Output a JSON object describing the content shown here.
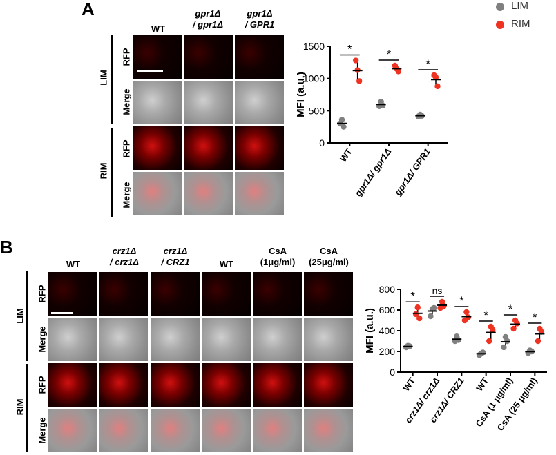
{
  "panels": [
    {
      "letter": "A",
      "columns": [
        {
          "line1": "WT",
          "line2": ""
        },
        {
          "line1": "gpr1Δ",
          "line2": "/ gpr1Δ"
        },
        {
          "line1": "gpr1Δ",
          "line2": "/ GPR1"
        }
      ],
      "groups": [
        {
          "label": "LIM",
          "rows": [
            "RFP",
            "Merge"
          ]
        },
        {
          "label": "RIM",
          "rows": [
            "RFP",
            "Merge"
          ]
        }
      ]
    },
    {
      "letter": "B",
      "columns": [
        {
          "line1": "WT",
          "line2": ""
        },
        {
          "line1": "crz1Δ",
          "line2": "/ crz1Δ"
        },
        {
          "line1": "crz1Δ",
          "line2": "/ CRZ1"
        },
        {
          "line1": "WT",
          "line2": ""
        },
        {
          "line1": "CsA",
          "line2": "(1μg/ml)"
        },
        {
          "line1": "CsA",
          "line2": "(25μg/ml)"
        }
      ],
      "groups": [
        {
          "label": "LIM",
          "rows": [
            "RFP",
            "Merge"
          ]
        },
        {
          "label": "RIM",
          "rows": [
            "RFP",
            "Merge"
          ]
        }
      ]
    }
  ],
  "legend": [
    {
      "label": "LIM",
      "color": "#808080"
    },
    {
      "label": "RIM",
      "color": "#ee3322"
    }
  ],
  "chart_data": [
    {
      "type": "scatter",
      "ylabel": "MFI (a.u.)",
      "ylim": [
        0,
        1500
      ],
      "yticks": [
        0,
        500,
        1000,
        1500
      ],
      "categories": [
        "WT",
        "gpr1Δ/ gpr1Δ",
        "gpr1Δ/ GPR1"
      ],
      "series": [
        {
          "name": "LIM",
          "color": "#808080",
          "points": [
            [
              300,
              360,
              250
            ],
            [
              570,
              640,
              580
            ],
            [
              410,
              440,
              420
            ]
          ],
          "mean": [
            303,
            597,
            423
          ]
        },
        {
          "name": "RIM",
          "color": "#ee3322",
          "points": [
            [
              1280,
              1130,
              960
            ],
            [
              1200,
              1150,
              1110
            ],
            [
              1050,
              1020,
              880
            ]
          ],
          "mean": [
            1123,
            1153,
            983
          ]
        }
      ],
      "significance": [
        "*",
        "*",
        "*"
      ],
      "grid": false
    },
    {
      "type": "scatter",
      "ylabel": "MFI (a.u.)",
      "ylim": [
        0,
        800
      ],
      "yticks": [
        0,
        200,
        400,
        600,
        800
      ],
      "categories": [
        "WT",
        "crz1Δ/ crz1Δ",
        "crz1Δ/ CRZ1",
        "WT",
        "CsA (1 μg/ml)",
        "CsA (25 μg/ml)"
      ],
      "series": [
        {
          "name": "LIM",
          "color": "#808080",
          "points": [
            [
              240,
              255,
              250
            ],
            [
              540,
              610,
              620
            ],
            [
              300,
              345,
              310
            ],
            [
              165,
              180,
              190
            ],
            [
              240,
              340,
              300
            ],
            [
              185,
              210,
              200
            ]
          ],
          "mean": [
            248,
            590,
            318,
            178,
            293,
            198
          ]
        },
        {
          "name": "RIM",
          "color": "#ee3322",
          "points": [
            [
              560,
              625,
              520
            ],
            [
              620,
              680,
              640
            ],
            [
              500,
              580,
              530
            ],
            [
              300,
              440,
              410
            ],
            [
              420,
              500,
              470
            ],
            [
              300,
              420,
              390
            ]
          ],
          "mean": [
            568,
            647,
            537,
            383,
            463,
            370
          ]
        }
      ],
      "significance": [
        "*",
        "ns",
        "*",
        "*",
        "*",
        "*"
      ],
      "grid": false
    }
  ]
}
